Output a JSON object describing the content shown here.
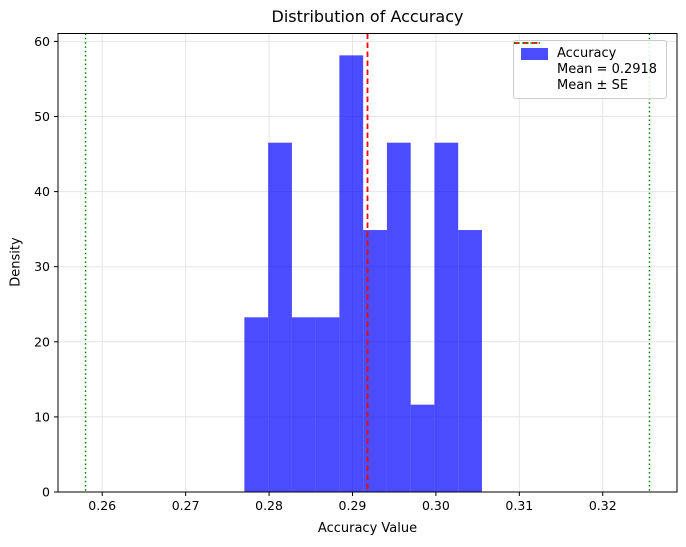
{
  "chart_data": {
    "type": "bar",
    "subtype": "histogram",
    "title": "Distribution of Accuracy",
    "xlabel": "Accuracy Value",
    "ylabel": "Density",
    "xlim": [
      0.2547,
      0.3289
    ],
    "ylim": [
      0,
      61.05
    ],
    "grid": true,
    "x_ticks": [
      {
        "value": 0.26,
        "label": "0.26"
      },
      {
        "value": 0.27,
        "label": "0.27"
      },
      {
        "value": 0.28,
        "label": "0.28"
      },
      {
        "value": 0.29,
        "label": "0.29"
      },
      {
        "value": 0.3,
        "label": "0.30"
      },
      {
        "value": 0.31,
        "label": "0.31"
      },
      {
        "value": 0.32,
        "label": "0.32"
      }
    ],
    "y_ticks": [
      {
        "value": 0,
        "label": "0"
      },
      {
        "value": 10,
        "label": "10"
      },
      {
        "value": 20,
        "label": "20"
      },
      {
        "value": 30,
        "label": "30"
      },
      {
        "value": 40,
        "label": "40"
      },
      {
        "value": 50,
        "label": "50"
      },
      {
        "value": 60,
        "label": "60"
      }
    ],
    "series_label": "Accuracy",
    "bar_color": "#0000ff",
    "bar_opacity": 0.7,
    "bin_edges": [
      0.27704,
      0.27989,
      0.28274,
      0.28558,
      0.28843,
      0.29128,
      0.29413,
      0.29698,
      0.29982,
      0.30267,
      0.30552
    ],
    "densities": [
      23.26,
      46.51,
      23.26,
      23.26,
      58.14,
      34.88,
      46.51,
      11.63,
      46.51,
      34.88
    ],
    "mean_line": {
      "value": 0.2918,
      "color": "#ff0000",
      "dash": "dashed",
      "label": "Mean = 0.2918"
    },
    "se_lines": {
      "values": [
        0.258,
        0.3256
      ],
      "color": "#008000",
      "dash": "dotted",
      "label": "Mean ± SE"
    },
    "legend": {
      "position": "upper right",
      "items": [
        {
          "label": "Accuracy",
          "swatch": "patch",
          "color": "#0000ff",
          "opacity": 0.7
        },
        {
          "label": "Mean = 0.2918",
          "swatch": "dashed-line",
          "color": "#ff0000",
          "opacity": 1
        },
        {
          "label": "Mean ± SE",
          "swatch": "dotted-line",
          "color": "#008000",
          "opacity": 1
        }
      ]
    },
    "colors": {
      "grid": "#e5e5e5",
      "spine": "#000000",
      "background": "#ffffff"
    }
  }
}
